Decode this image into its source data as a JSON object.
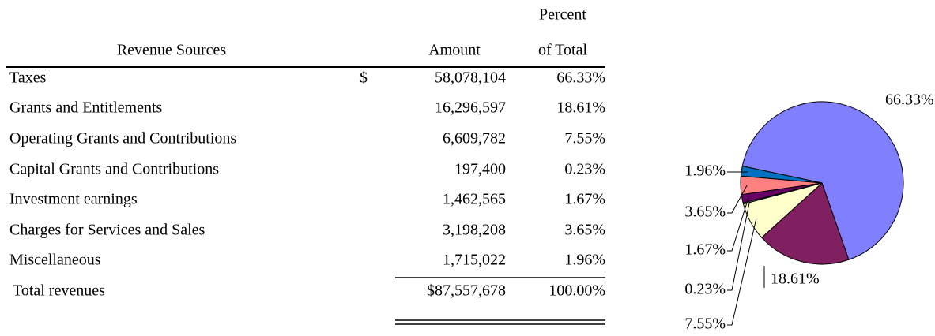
{
  "table": {
    "header": {
      "source": "Revenue Sources",
      "amount": "Amount",
      "percent": [
        "Percent",
        "of Total"
      ]
    },
    "rows": [
      {
        "label": "Taxes",
        "currency": "$",
        "amount": "58,078,104",
        "percent": "66.33%"
      },
      {
        "label": "Grants and Entitlements",
        "amount": "16,296,597",
        "percent": "18.61%"
      },
      {
        "label": "Operating Grants and Contributions",
        "amount": "6,609,782",
        "percent": "7.55%"
      },
      {
        "label": "Capital Grants and Contributions",
        "amount": "197,400",
        "percent": "0.23%"
      },
      {
        "label": "Investment earnings",
        "amount": "1,462,565",
        "percent": "1.67%"
      },
      {
        "label": "Charges for Services and Sales",
        "amount": "3,198,208",
        "percent": "3.65%"
      },
      {
        "label": "Miscellaneous",
        "amount": "1,715,022",
        "percent": "1.96%"
      }
    ],
    "total": {
      "label": "Total revenues",
      "amount": "$87,557,678",
      "percent": "100.00%"
    }
  },
  "chart_data": {
    "type": "pie",
    "values": [
      66.33,
      18.61,
      7.55,
      0.23,
      1.67,
      3.65,
      1.96
    ],
    "value_labels": [
      "66.33%",
      "18.61%",
      "7.55%",
      "0.23%",
      "1.67%",
      "3.65%",
      "1.96%"
    ],
    "colors": [
      "#8080ff",
      "#802060",
      "#ffffcc",
      "#ccffff",
      "#660066",
      "#ff8080",
      "#0070c0"
    ]
  }
}
